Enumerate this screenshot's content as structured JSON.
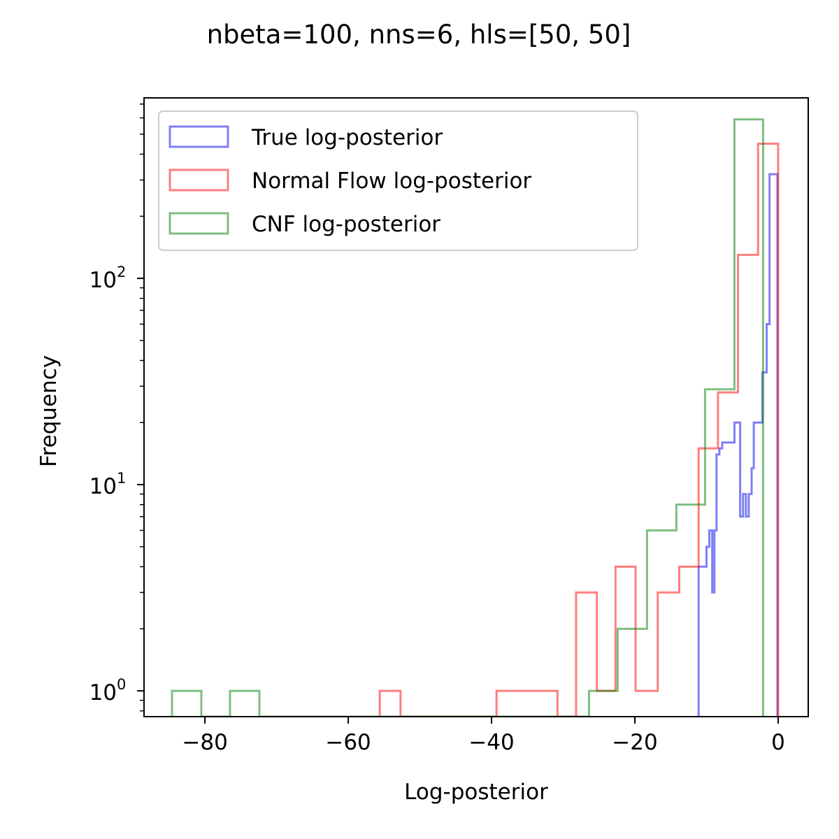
{
  "chart_data": {
    "type": "histogram",
    "title": "nbeta=100, nns=6, hls=[50, 50]",
    "xlabel": "Log-posterior",
    "ylabel": "Frequency",
    "yscale": "log",
    "xlim": [
      -88.5,
      4.2
    ],
    "ylim": [
      0.75,
      750
    ],
    "xticks": [
      {
        "value": -80,
        "label": "−80"
      },
      {
        "value": -60,
        "label": "−60"
      },
      {
        "value": -40,
        "label": "−40"
      },
      {
        "value": -20,
        "label": "−20"
      },
      {
        "value": 0,
        "label": "0"
      }
    ],
    "yticks": [
      {
        "value": 1,
        "base": "10",
        "exp": "0"
      },
      {
        "value": 10,
        "base": "10",
        "exp": "1"
      },
      {
        "value": 100,
        "base": "10",
        "exp": "2"
      }
    ],
    "legend_position": "upper-left",
    "series": [
      {
        "name": "True log-posterior",
        "color": "#0000ee",
        "edges": [
          -11.1,
          -10.0,
          -9.6,
          -9.2,
          -8.9,
          -8.6,
          -8.2,
          -7.8,
          -6.1,
          -5.3,
          -4.9,
          -4.5,
          -4.1,
          -3.7,
          -3.4,
          -2.2,
          -1.6,
          -1.2,
          -0.9,
          -0.1
        ],
        "counts": [
          4,
          5,
          6,
          3,
          6,
          14,
          15,
          16,
          20,
          7,
          9,
          7,
          9,
          12,
          20,
          35,
          60,
          320,
          320
        ]
      },
      {
        "name": "Normal Flow log-posterior",
        "color": "#ff0000",
        "edges": [
          -55.6,
          -52.7,
          -39.3,
          -30.8,
          -28.2,
          -25.3,
          -22.7,
          -19.9,
          -16.8,
          -13.8,
          -11.1,
          -8.4,
          -5.6,
          -2.8,
          0
        ],
        "counts": [
          1,
          0,
          1,
          0,
          3,
          1,
          4,
          1,
          3,
          4,
          15,
          28,
          130,
          450
        ]
      },
      {
        "name": "CNF log-posterior",
        "color": "#008000",
        "edges": [
          -84.6,
          -80.5,
          -76.5,
          -72.4,
          -26.4,
          -22.4,
          -18.3,
          -14.2,
          -10.2,
          -6.1,
          -2.1
        ],
        "counts": [
          1,
          0,
          1,
          0,
          1,
          2,
          6,
          8,
          29,
          590
        ]
      }
    ]
  }
}
